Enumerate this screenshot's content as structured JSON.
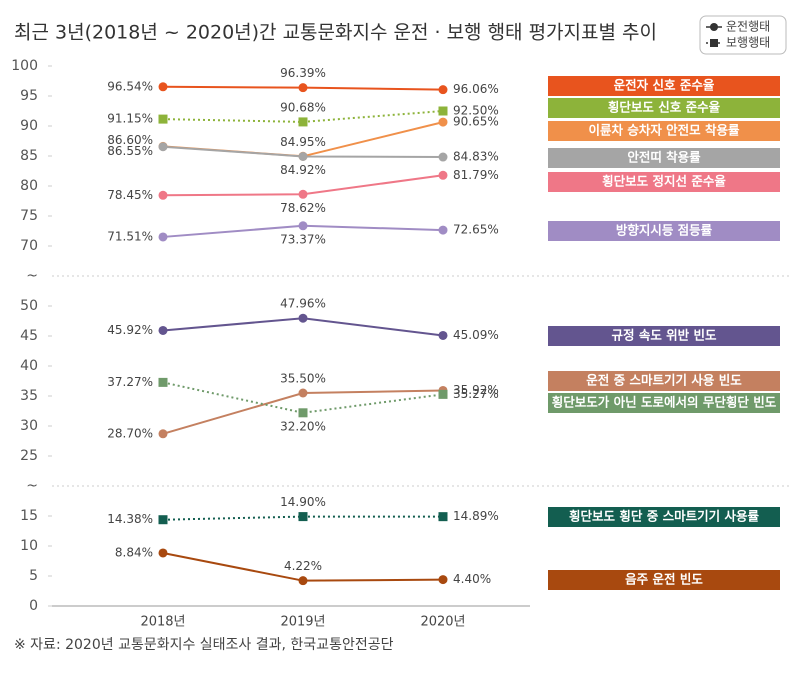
{
  "chart_data": {
    "type": "line",
    "title": "최근 3년(2018년 ~ 2020년)간 교통문화지수 운전 · 보행 행태 평가지표별 추이",
    "source": "※ 자료: 2020년 교통문화지수 실태조사 결과, 한국교통안전공단",
    "categories": [
      "2018년",
      "2019년",
      "2020년"
    ],
    "ylim": [
      0,
      100
    ],
    "y_breaks": [
      [
        15,
        25
      ],
      [
        50,
        70
      ]
    ],
    "break_label": "~",
    "yticks": [
      0,
      5,
      10,
      15,
      25,
      30,
      35,
      40,
      45,
      50,
      70,
      75,
      80,
      85,
      90,
      95,
      100
    ],
    "legend": [
      {
        "name": "운전행태",
        "marker": "circle",
        "dashed": false
      },
      {
        "name": "보행행태",
        "marker": "square",
        "dashed": true
      }
    ],
    "series": [
      {
        "name": "운전자 신호 준수율",
        "color": "#e8541e",
        "marker": "circle",
        "dashed": false,
        "values": [
          96.54,
          96.39,
          96.06
        ],
        "value_labels": [
          "96.54%",
          "96.39%",
          "96.06%"
        ]
      },
      {
        "name": "횡단보도 신호 준수율",
        "color": "#8db33a",
        "marker": "square",
        "dashed": true,
        "values": [
          91.15,
          90.68,
          92.5
        ],
        "value_labels": [
          "91.15%",
          "90.68%",
          "92.50%"
        ]
      },
      {
        "name": "이륜차 승차자 안전모 착용률",
        "color": "#f0904a",
        "marker": "circle",
        "dashed": false,
        "values": [
          86.6,
          84.95,
          90.65
        ],
        "value_labels": [
          "86.60%",
          "84.95%",
          "90.65%"
        ]
      },
      {
        "name": "안전띠 착용률",
        "color": "#a5a5a5",
        "marker": "circle",
        "dashed": false,
        "values": [
          86.55,
          84.92,
          84.83
        ],
        "value_labels": [
          "86.55%",
          "84.92%",
          "84.83%"
        ]
      },
      {
        "name": "횡단보도 정지선 준수율",
        "color": "#ef7787",
        "marker": "circle",
        "dashed": false,
        "values": [
          78.45,
          78.62,
          81.79
        ],
        "value_labels": [
          "78.45%",
          "78.62%",
          "81.79%"
        ]
      },
      {
        "name": "방향지시등 점등률",
        "color": "#a08cc4",
        "marker": "circle",
        "dashed": false,
        "values": [
          71.51,
          73.37,
          72.65
        ],
        "value_labels": [
          "71.51%",
          "73.37%",
          "72.65%"
        ]
      },
      {
        "name": "규정 속도 위반 빈도",
        "color": "#63558f",
        "marker": "circle",
        "dashed": false,
        "values": [
          45.92,
          47.96,
          45.09
        ],
        "value_labels": [
          "45.92%",
          "47.96%",
          "45.09%"
        ]
      },
      {
        "name": "운전 중 스마트기기 사용 빈도",
        "color": "#c48060",
        "marker": "circle",
        "dashed": false,
        "values": [
          28.7,
          35.5,
          35.92
        ],
        "value_labels": [
          "28.70%",
          "35.50%",
          "35.92%"
        ]
      },
      {
        "name": "횡단보도가 아닌 도로에서의 무단횡단 빈도",
        "color": "#6f9a6a",
        "marker": "square",
        "dashed": true,
        "values": [
          37.27,
          32.2,
          35.27
        ],
        "value_labels": [
          "37.27%",
          "32.20%",
          "35.27%"
        ]
      },
      {
        "name": "횡단보도 횡단 중 스마트기기 사용률",
        "color": "#135e50",
        "marker": "square",
        "dashed": true,
        "values": [
          14.38,
          14.9,
          14.89
        ],
        "value_labels": [
          "14.38%",
          "14.90%",
          "14.89%"
        ]
      },
      {
        "name": "음주 운전 빈도",
        "color": "#a8490f",
        "marker": "circle",
        "dashed": false,
        "values": [
          8.84,
          4.22,
          4.4
        ],
        "value_labels": [
          "8.84%",
          "4.22%",
          "4.40%"
        ]
      }
    ]
  }
}
